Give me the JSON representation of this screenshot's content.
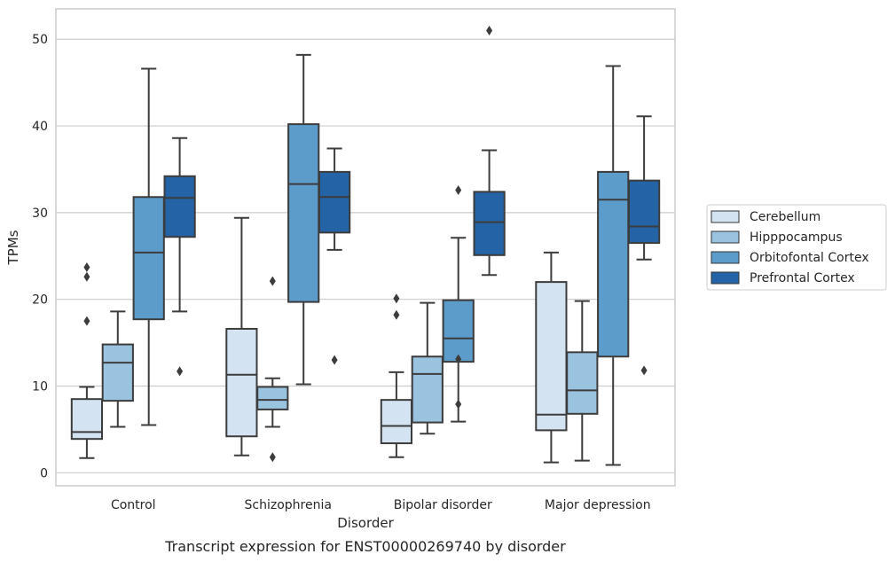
{
  "chart_data": {
    "type": "box",
    "xlabel": "Disorder",
    "ylabel": "TPMs",
    "caption": "Transcript expression for ENST00000269740 by disorder",
    "ylim": [
      -1.5,
      53.5
    ],
    "yticks": [
      "0",
      "10",
      "20",
      "30",
      "40",
      "50"
    ],
    "grid": "horizontal",
    "legend_position": "right",
    "categories": [
      "Control",
      "Schizophrenia",
      "Bipolar disorder",
      "Major depression"
    ],
    "series": [
      {
        "name": "Cerebellum",
        "color": "#d3e3f2",
        "boxes": [
          {
            "whisker_low": 1.7,
            "q1": 3.9,
            "median": 4.7,
            "q3": 8.5,
            "whisker_high": 9.9,
            "outliers": [
              17.5,
              22.6,
              23.7
            ]
          },
          {
            "whisker_low": 2.0,
            "q1": 4.2,
            "median": 11.3,
            "q3": 16.6,
            "whisker_high": 29.4,
            "outliers": []
          },
          {
            "whisker_low": 1.8,
            "q1": 3.4,
            "median": 5.4,
            "q3": 8.4,
            "whisker_high": 11.6,
            "outliers": [
              18.2,
              20.1
            ]
          },
          {
            "whisker_low": 1.2,
            "q1": 4.9,
            "median": 6.7,
            "q3": 22.0,
            "whisker_high": 25.4,
            "outliers": []
          }
        ]
      },
      {
        "name": "Hipppocampus",
        "color": "#9ac3df",
        "boxes": [
          {
            "whisker_low": 5.3,
            "q1": 8.3,
            "median": 12.7,
            "q3": 14.8,
            "whisker_high": 18.6,
            "outliers": []
          },
          {
            "whisker_low": 5.3,
            "q1": 7.3,
            "median": 8.4,
            "q3": 9.9,
            "whisker_high": 10.9,
            "outliers": [
              1.8,
              22.1
            ]
          },
          {
            "whisker_low": 4.5,
            "q1": 5.8,
            "median": 11.4,
            "q3": 13.4,
            "whisker_high": 19.6,
            "outliers": []
          },
          {
            "whisker_low": 1.4,
            "q1": 6.8,
            "median": 9.5,
            "q3": 13.9,
            "whisker_high": 19.8,
            "outliers": []
          }
        ]
      },
      {
        "name": "Orbitofontal Cortex",
        "color": "#5b9cca",
        "boxes": [
          {
            "whisker_low": 5.5,
            "q1": 17.7,
            "median": 25.4,
            "q3": 31.8,
            "whisker_high": 46.6,
            "outliers": []
          },
          {
            "whisker_low": 10.2,
            "q1": 19.7,
            "median": 33.3,
            "q3": 40.2,
            "whisker_high": 48.2,
            "outliers": []
          },
          {
            "whisker_low": 5.9,
            "q1": 12.8,
            "median": 15.5,
            "q3": 19.9,
            "whisker_high": 27.1,
            "outliers": [
              7.9,
              13.1,
              32.6
            ]
          },
          {
            "whisker_low": 0.9,
            "q1": 13.4,
            "median": 31.5,
            "q3": 34.7,
            "whisker_high": 46.9,
            "outliers": []
          }
        ]
      },
      {
        "name": "Prefrontal Cortex",
        "color": "#2464a6",
        "boxes": [
          {
            "whisker_low": 18.6,
            "q1": 27.2,
            "median": 31.7,
            "q3": 34.2,
            "whisker_high": 38.6,
            "outliers": [
              11.7
            ]
          },
          {
            "whisker_low": 25.7,
            "q1": 27.7,
            "median": 31.8,
            "q3": 34.7,
            "whisker_high": 37.4,
            "outliers": [
              13.0
            ]
          },
          {
            "whisker_low": 22.8,
            "q1": 25.1,
            "median": 28.9,
            "q3": 32.4,
            "whisker_high": 37.2,
            "outliers": [
              51.0
            ]
          },
          {
            "whisker_low": 24.6,
            "q1": 26.5,
            "median": 28.4,
            "q3": 33.7,
            "whisker_high": 41.1,
            "outliers": [
              11.8
            ]
          }
        ]
      }
    ]
  }
}
